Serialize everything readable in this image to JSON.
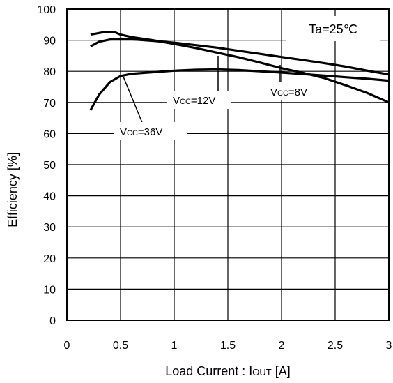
{
  "chart_data": {
    "type": "line",
    "xlabel_prefix": "Load Current : I",
    "xlabel_sub": "OUT",
    "xlabel_suffix": " [A]",
    "ylabel": "Efficiency [%]",
    "xlim": [
      0,
      3
    ],
    "ylim": [
      0,
      100
    ],
    "x_ticks": [
      "0",
      "0.5",
      "1",
      "1.5",
      "2",
      "2.5",
      "3"
    ],
    "y_ticks": [
      "0",
      "10",
      "20",
      "30",
      "40",
      "50",
      "60",
      "70",
      "80",
      "90",
      "100"
    ],
    "grid": true,
    "annotation_box": "Ta=25℃",
    "series": [
      {
        "name_v": "V",
        "name_sub": "CC",
        "name_rest": "=8V",
        "x": [
          0.22,
          0.3,
          0.4,
          0.5,
          0.6,
          0.8,
          1.0,
          1.2,
          1.4,
          1.6,
          1.8,
          2.0,
          2.2,
          2.4,
          2.6,
          2.8,
          3.0
        ],
        "values": [
          88,
          89.5,
          90.2,
          90.5,
          90.3,
          89.8,
          89.2,
          88.4,
          87.6,
          86.6,
          85.6,
          84.6,
          83.6,
          82.6,
          81.5,
          80.2,
          79
        ]
      },
      {
        "name_v": "V",
        "name_sub": "CC",
        "name_rest": "=12V",
        "x": [
          0.22,
          0.3,
          0.35,
          0.4,
          0.45,
          0.5,
          0.6,
          0.8,
          1.0,
          1.2,
          1.4,
          1.6,
          1.8,
          2.0,
          2.2,
          2.4,
          2.6,
          2.8,
          3.0
        ],
        "values": [
          91.8,
          92.3,
          92.6,
          92.7,
          92.5,
          91.8,
          91,
          90,
          88.8,
          87.5,
          86,
          84.5,
          82.8,
          81,
          79.5,
          77.8,
          75.5,
          73,
          70
        ]
      },
      {
        "name_v": "V",
        "name_sub": "CC",
        "name_rest": "=36V",
        "x": [
          0.22,
          0.3,
          0.4,
          0.5,
          0.6,
          0.8,
          1.0,
          1.2,
          1.4,
          1.6,
          1.8,
          2.0,
          2.2,
          2.4,
          2.6,
          2.8,
          3.0
        ],
        "values": [
          67.5,
          72.5,
          76.5,
          78.5,
          79.2,
          79.7,
          80.2,
          80.5,
          80.6,
          80.4,
          80,
          79.6,
          79.1,
          78.6,
          78.1,
          77.6,
          77
        ]
      }
    ]
  }
}
